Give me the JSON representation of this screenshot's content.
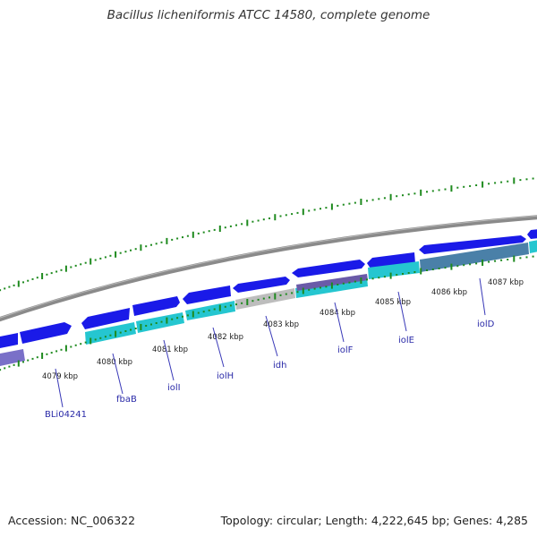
{
  "title": "Bacillus licheniformis ATCC 14580, complete genome",
  "footer": {
    "accession": "Accession: NC_006322",
    "summary": "Topology: circular; Length: 4,222,645 bp; Genes: 4,285"
  },
  "colors": {
    "forward_cds": "#1a1ae8",
    "cds_cyan": "#25c6d0",
    "cds_gray": "#bdbdbd",
    "cds_steel": "#4a80a8",
    "cds_purple": "#7a70c8",
    "backbone": "#8a8a8a",
    "tick": "#1e8a1e",
    "gene_label": "#2a2aa8"
  },
  "kbp_labels": [
    {
      "text": "4079 kbp"
    },
    {
      "text": "4080 kbp"
    },
    {
      "text": "4081 kbp"
    },
    {
      "text": "4082 kbp"
    },
    {
      "text": "4083 kbp"
    },
    {
      "text": "4084 kbp"
    },
    {
      "text": "4085 kbp"
    },
    {
      "text": "4086 kbp"
    },
    {
      "text": "4087 kbp"
    }
  ],
  "gene_labels": [
    {
      "text": "BLi04241"
    },
    {
      "text": "fbaB"
    },
    {
      "text": "iolI"
    },
    {
      "text": "iolH"
    },
    {
      "text": "idh"
    },
    {
      "text": "iolF"
    },
    {
      "text": "iolE"
    },
    {
      "text": "iolD"
    }
  ]
}
